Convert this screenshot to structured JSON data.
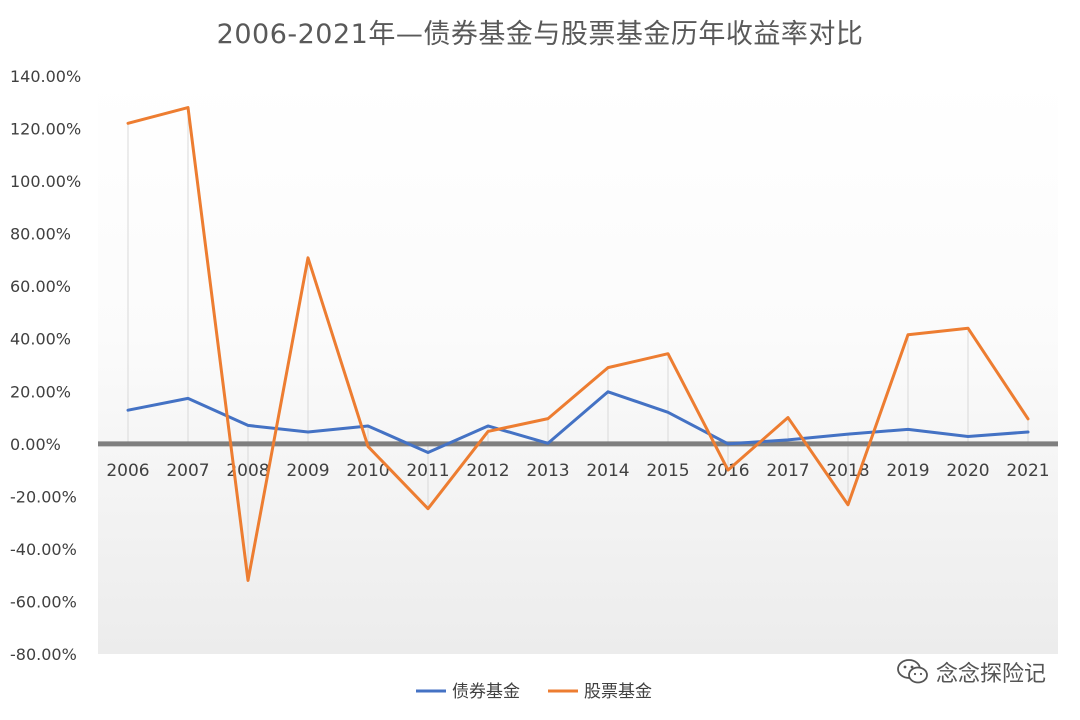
{
  "chart_data": {
    "type": "line",
    "title": "2006-2021年—债券基金与股票基金历年收益率对比",
    "categories": [
      "2006",
      "2007",
      "2008",
      "2009",
      "2010",
      "2011",
      "2012",
      "2013",
      "2014",
      "2015",
      "2016",
      "2017",
      "2018",
      "2019",
      "2020",
      "2021"
    ],
    "series": [
      {
        "name": "债券基金",
        "color": "#4472C4",
        "values": [
          12.8,
          17.3,
          7.0,
          4.5,
          6.8,
          -3.3,
          6.8,
          0.2,
          19.8,
          12.0,
          0.0,
          1.5,
          3.7,
          5.5,
          2.8,
          4.5
        ]
      },
      {
        "name": "股票基金",
        "color": "#ED7D31",
        "values": [
          122.0,
          128.0,
          -52.0,
          70.8,
          -1.0,
          -24.7,
          4.7,
          9.6,
          29.0,
          34.3,
          -10.0,
          10.0,
          -23.2,
          41.5,
          44.0,
          9.5
        ]
      }
    ],
    "yticks": [
      "140.00%",
      "120.00%",
      "100.00%",
      "80.00%",
      "60.00%",
      "40.00%",
      "20.00%",
      "0.00%",
      "-20.00%",
      "-40.00%",
      "-60.00%",
      "-80.00%"
    ],
    "ylim": [
      -80,
      140
    ],
    "legend_position": "bottom"
  },
  "watermark": {
    "text": "念念探险记",
    "icon": "wechat-icon"
  }
}
